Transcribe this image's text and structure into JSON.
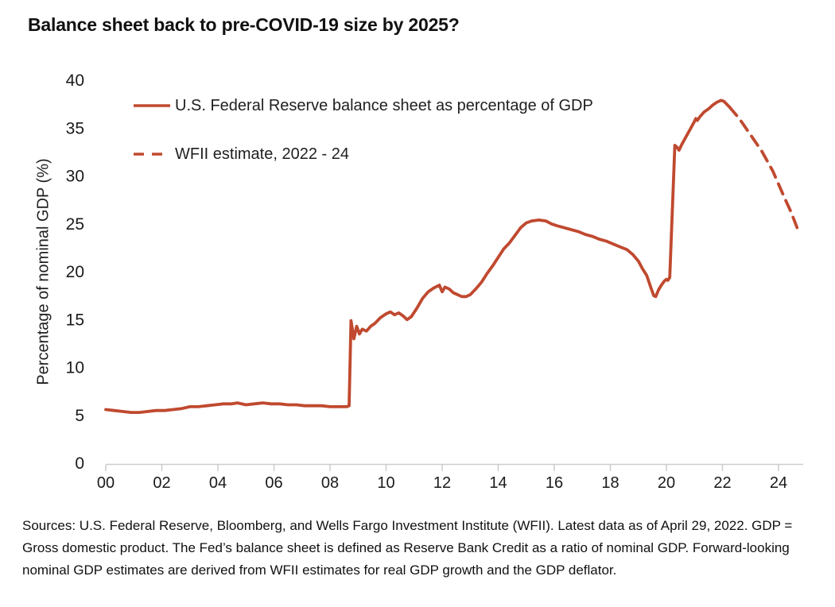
{
  "title": "Balance sheet back to pre-COVID-19 size by 2025?",
  "legend": [
    {
      "label": "U.S. Federal Reserve balance sheet as percentage of GDP",
      "style": "solid"
    },
    {
      "label": "WFII estimate, 2022 - 24",
      "style": "dashed"
    }
  ],
  "y_axis": {
    "title": "Percentage of nominal GDP (%)",
    "ticks": [
      0,
      5,
      10,
      15,
      20,
      25,
      30,
      35,
      40
    ]
  },
  "x_axis": {
    "tick_years": [
      2000,
      2002,
      2004,
      2006,
      2008,
      2010,
      2012,
      2014,
      2016,
      2018,
      2020,
      2022,
      2024
    ],
    "tick_labels": [
      "00",
      "02",
      "04",
      "06",
      "08",
      "10",
      "12",
      "14",
      "16",
      "18",
      "20",
      "22",
      "24"
    ]
  },
  "source": "Sources: U.S. Federal Reserve, Bloomberg, and Wells Fargo Investment Institute (WFII). Latest data as of April 29, 2022. GDP = Gross domestic product. The Fed’s balance sheet is defined as Reserve Bank Credit as a ratio of nominal GDP. Forward-looking nominal GDP estimates are derived from WFII estimates for real GDP growth and the GDP deflator.",
  "colors": {
    "line": "#c0492f",
    "axis": "#cccccc",
    "text": "#1a1a1a"
  },
  "chart_data": {
    "type": "line",
    "title": "Balance sheet back to pre-COVID-19 size by 2025?",
    "xlabel": "",
    "ylabel": "Percentage of nominal GDP (%)",
    "ylim": [
      0,
      40
    ],
    "xlim": [
      2000,
      2024.9
    ],
    "grid": false,
    "legend_position": "top-left",
    "series": [
      {
        "name": "U.S. Federal Reserve balance sheet as percentage of GDP",
        "style": "solid",
        "color": "#c0492f",
        "points": [
          [
            2000.0,
            5.6
          ],
          [
            2000.3,
            5.5
          ],
          [
            2000.6,
            5.4
          ],
          [
            2000.9,
            5.3
          ],
          [
            2001.2,
            5.3
          ],
          [
            2001.5,
            5.4
          ],
          [
            2001.8,
            5.5
          ],
          [
            2002.1,
            5.5
          ],
          [
            2002.4,
            5.6
          ],
          [
            2002.7,
            5.7
          ],
          [
            2003.0,
            5.9
          ],
          [
            2003.3,
            5.9
          ],
          [
            2003.6,
            6.0
          ],
          [
            2003.9,
            6.1
          ],
          [
            2004.2,
            6.2
          ],
          [
            2004.5,
            6.2
          ],
          [
            2004.7,
            6.3
          ],
          [
            2005.0,
            6.1
          ],
          [
            2005.3,
            6.2
          ],
          [
            2005.6,
            6.3
          ],
          [
            2005.9,
            6.2
          ],
          [
            2006.2,
            6.2
          ],
          [
            2006.5,
            6.1
          ],
          [
            2006.8,
            6.1
          ],
          [
            2007.1,
            6.0
          ],
          [
            2007.4,
            6.0
          ],
          [
            2007.7,
            6.0
          ],
          [
            2008.0,
            5.9
          ],
          [
            2008.3,
            5.9
          ],
          [
            2008.6,
            5.9
          ],
          [
            2008.68,
            6.0
          ],
          [
            2008.75,
            14.9
          ],
          [
            2008.85,
            13.0
          ],
          [
            2008.95,
            14.3
          ],
          [
            2009.05,
            13.5
          ],
          [
            2009.15,
            14.0
          ],
          [
            2009.3,
            13.8
          ],
          [
            2009.45,
            14.3
          ],
          [
            2009.6,
            14.6
          ],
          [
            2009.8,
            15.2
          ],
          [
            2010.0,
            15.6
          ],
          [
            2010.15,
            15.8
          ],
          [
            2010.3,
            15.5
          ],
          [
            2010.45,
            15.7
          ],
          [
            2010.6,
            15.4
          ],
          [
            2010.75,
            15.0
          ],
          [
            2010.9,
            15.3
          ],
          [
            2011.1,
            16.2
          ],
          [
            2011.3,
            17.2
          ],
          [
            2011.5,
            17.9
          ],
          [
            2011.7,
            18.3
          ],
          [
            2011.9,
            18.6
          ],
          [
            2012.0,
            17.9
          ],
          [
            2012.1,
            18.4
          ],
          [
            2012.25,
            18.2
          ],
          [
            2012.4,
            17.8
          ],
          [
            2012.55,
            17.6
          ],
          [
            2012.7,
            17.4
          ],
          [
            2012.85,
            17.4
          ],
          [
            2013.0,
            17.6
          ],
          [
            2013.2,
            18.2
          ],
          [
            2013.4,
            18.9
          ],
          [
            2013.6,
            19.8
          ],
          [
            2013.8,
            20.6
          ],
          [
            2014.0,
            21.5
          ],
          [
            2014.2,
            22.4
          ],
          [
            2014.4,
            23.0
          ],
          [
            2014.6,
            23.8
          ],
          [
            2014.8,
            24.6
          ],
          [
            2015.0,
            25.1
          ],
          [
            2015.2,
            25.3
          ],
          [
            2015.45,
            25.4
          ],
          [
            2015.7,
            25.3
          ],
          [
            2015.9,
            25.0
          ],
          [
            2016.1,
            24.8
          ],
          [
            2016.35,
            24.6
          ],
          [
            2016.6,
            24.4
          ],
          [
            2016.85,
            24.2
          ],
          [
            2017.1,
            23.9
          ],
          [
            2017.35,
            23.7
          ],
          [
            2017.6,
            23.4
          ],
          [
            2017.85,
            23.2
          ],
          [
            2018.1,
            22.9
          ],
          [
            2018.35,
            22.6
          ],
          [
            2018.6,
            22.3
          ],
          [
            2018.8,
            21.8
          ],
          [
            2019.0,
            21.1
          ],
          [
            2019.15,
            20.3
          ],
          [
            2019.3,
            19.6
          ],
          [
            2019.45,
            18.3
          ],
          [
            2019.55,
            17.5
          ],
          [
            2019.62,
            17.4
          ],
          [
            2019.72,
            18.1
          ],
          [
            2019.82,
            18.6
          ],
          [
            2019.92,
            19.0
          ],
          [
            2020.0,
            19.2
          ],
          [
            2020.05,
            19.1
          ],
          [
            2020.12,
            19.4
          ],
          [
            2020.3,
            33.2
          ],
          [
            2020.38,
            33.0
          ],
          [
            2020.45,
            32.7
          ],
          [
            2020.55,
            33.3
          ],
          [
            2020.7,
            34.1
          ],
          [
            2020.85,
            34.9
          ],
          [
            2021.0,
            35.7
          ],
          [
            2021.05,
            36.0
          ],
          [
            2021.1,
            35.8
          ],
          [
            2021.2,
            36.2
          ],
          [
            2021.35,
            36.7
          ],
          [
            2021.5,
            37.0
          ],
          [
            2021.65,
            37.4
          ],
          [
            2021.8,
            37.7
          ],
          [
            2021.95,
            37.9
          ],
          [
            2022.05,
            37.8
          ],
          [
            2022.15,
            37.5
          ],
          [
            2022.25,
            37.2
          ]
        ]
      },
      {
        "name": "WFII estimate, 2022 - 24",
        "style": "dashed",
        "color": "#c0492f",
        "points": [
          [
            2022.25,
            37.2
          ],
          [
            2022.6,
            36.0
          ],
          [
            2023.0,
            34.3
          ],
          [
            2023.4,
            32.6
          ],
          [
            2023.8,
            30.5
          ],
          [
            2024.2,
            27.8
          ],
          [
            2024.45,
            26.2
          ],
          [
            2024.7,
            24.3
          ]
        ]
      }
    ]
  }
}
